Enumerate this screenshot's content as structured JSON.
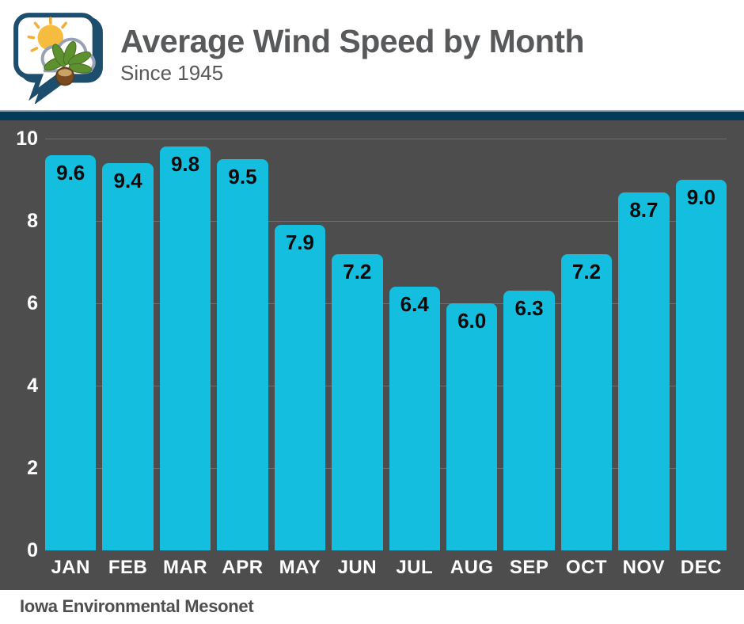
{
  "header": {
    "title": "Average Wind Speed by Month",
    "subtitle": "Since 1945",
    "logo": "iowa-environmental-mesonet-logo"
  },
  "footer": {
    "source": "Iowa Environmental Mesonet"
  },
  "colors": {
    "bar": "#13bedf",
    "chart_background": "#4d4d4d",
    "accent_navy": "#043b58",
    "title_text": "#58595b",
    "gridline": "#6f6f6f",
    "axis_text": "#ffffff",
    "value_label_text": "#0a0a0a"
  },
  "chart_data": {
    "type": "bar",
    "title": "Average Wind Speed by Month",
    "subtitle": "Since 1945",
    "source": "Iowa Environmental Mesonet",
    "categories": [
      "JAN",
      "FEB",
      "MAR",
      "APR",
      "MAY",
      "JUN",
      "JUL",
      "AUG",
      "SEP",
      "OCT",
      "NOV",
      "DEC"
    ],
    "values": [
      9.6,
      9.4,
      9.8,
      9.5,
      7.9,
      7.2,
      6.4,
      6.0,
      6.3,
      7.2,
      8.7,
      9.0
    ],
    "xlabel": "",
    "ylabel": "",
    "ylim": [
      0,
      10
    ],
    "yticks": [
      0,
      2,
      4,
      6,
      8,
      10
    ],
    "grid": true,
    "legend": false,
    "value_labels": "inside-top"
  }
}
